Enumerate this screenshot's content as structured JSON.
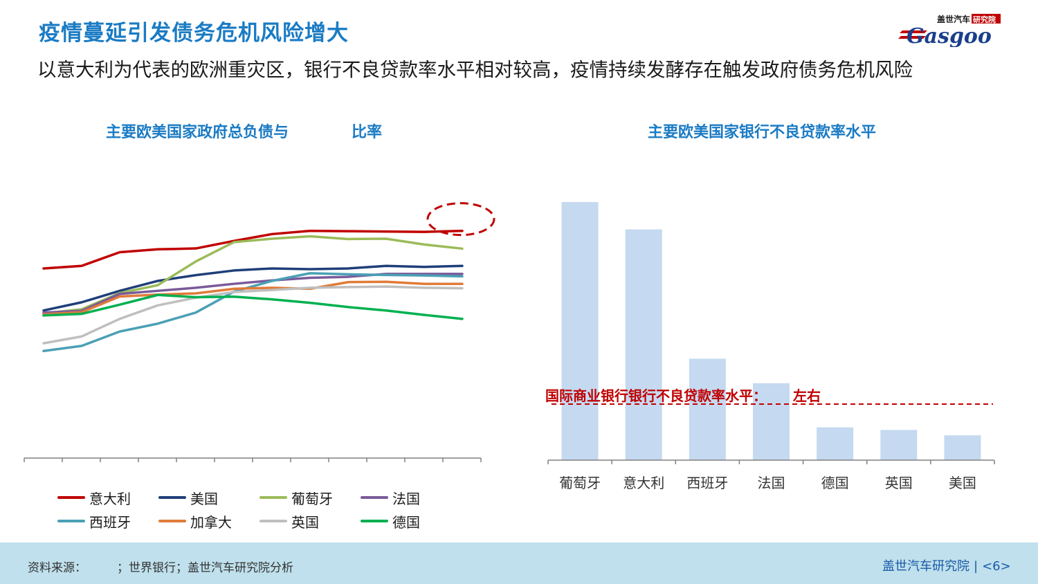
{
  "header": {
    "title": "疫情蔓延引发债务危机风险增大",
    "subtitle": "以意大利为代表的欧洲重灾区，银行不良贷款率水平相对较高，疫情持续发酵存在触发政府债务危机风险"
  },
  "logo": {
    "cn_text": "盖世汽车",
    "cn_badge": "研究院",
    "en_text": "Gasgoo"
  },
  "colors": {
    "title_blue": "#1a7bc4",
    "bar_fill": "#c5d9f0",
    "benchmark_red": "#c00000",
    "footer_bg": "#bfe0ec"
  },
  "chart_data": [
    {
      "type": "line",
      "title_parts": [
        "主要欧美国家政府总负债与",
        "比率"
      ],
      "x": [
        1,
        2,
        3,
        4,
        5,
        6,
        7,
        8,
        9,
        10,
        11,
        12
      ],
      "ylim": [
        0,
        1
      ],
      "x_ticks_labeled": false,
      "y_axis_shown": false,
      "annotation": "dashed-ellipse-around-italy-end",
      "series": [
        {
          "name": "意大利",
          "color": "#c00000",
          "values": [
            0.737,
            0.752,
            0.832,
            0.849,
            0.854,
            0.898,
            0.938,
            0.957,
            0.955,
            0.953,
            0.951,
            0.957
          ]
        },
        {
          "name": "美国",
          "color": "#1f3f7a",
          "values": [
            0.491,
            0.539,
            0.606,
            0.664,
            0.698,
            0.725,
            0.737,
            0.733,
            0.737,
            0.752,
            0.746,
            0.752
          ]
        },
        {
          "name": "葡萄牙",
          "color": "#9bbb59",
          "values": [
            0.474,
            0.498,
            0.593,
            0.639,
            0.778,
            0.891,
            0.911,
            0.925,
            0.909,
            0.911,
            0.877,
            0.853
          ]
        },
        {
          "name": "法国",
          "color": "#7a5a9a",
          "values": [
            0.479,
            0.489,
            0.588,
            0.606,
            0.624,
            0.647,
            0.667,
            0.682,
            0.688,
            0.705,
            0.705,
            0.705
          ]
        },
        {
          "name": "西班牙",
          "color": "#4aa0b5",
          "values": [
            0.254,
            0.284,
            0.368,
            0.414,
            0.479,
            0.601,
            0.664,
            0.709,
            0.703,
            0.699,
            0.696,
            0.691
          ]
        },
        {
          "name": "加拿大",
          "color": "#e07b39",
          "values": [
            0.469,
            0.481,
            0.573,
            0.584,
            0.591,
            0.618,
            0.624,
            0.618,
            0.657,
            0.659,
            0.647,
            0.647
          ]
        },
        {
          "name": "英国",
          "color": "#bfbfbf",
          "values": [
            0.299,
            0.339,
            0.442,
            0.521,
            0.566,
            0.599,
            0.611,
            0.624,
            0.628,
            0.631,
            0.624,
            0.621
          ]
        },
        {
          "name": "德国",
          "color": "#00b050",
          "values": [
            0.462,
            0.471,
            0.525,
            0.582,
            0.569,
            0.572,
            0.556,
            0.536,
            0.511,
            0.491,
            0.465,
            0.442
          ]
        }
      ]
    },
    {
      "type": "bar",
      "title": "主要欧美国家银行不良贷款率水平",
      "categories": [
        "葡萄牙",
        "意大利",
        "西班牙",
        "法国",
        "德国",
        "英国",
        "美国"
      ],
      "values": [
        1.0,
        0.894,
        0.393,
        0.298,
        0.127,
        0.117,
        0.096
      ],
      "ylim": [
        0,
        1
      ],
      "y_axis_shown": false,
      "benchmark": {
        "value": 0.217,
        "label": "国际商业银行银行不良贷款率水平：",
        "label_tail": "左右",
        "style": "dashed"
      }
    }
  ],
  "footer": {
    "source_label": "资料来源：",
    "source_text": "；世界银行；盖世汽车研究院分析",
    "brand": "盖世汽车研究院",
    "separator": "|",
    "page": "<6>"
  }
}
